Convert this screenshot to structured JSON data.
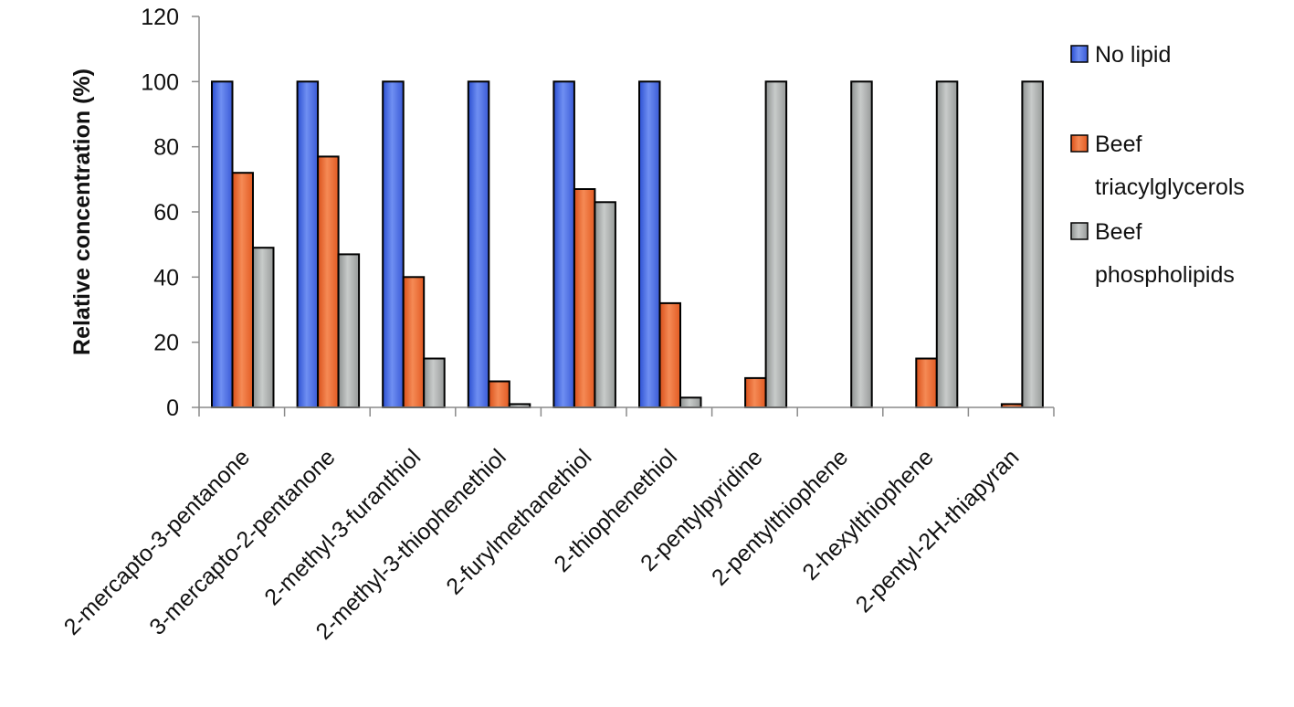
{
  "chart_data": {
    "type": "bar",
    "title": "",
    "xlabel": "",
    "ylabel": "Relative concentration (%)",
    "ylim": [
      0,
      120
    ],
    "yticks": [
      0,
      20,
      40,
      60,
      80,
      100,
      120
    ],
    "grid": false,
    "legend_position": "right",
    "categories": [
      "2-mercapto-3-pentanone",
      "3-mercapto-2-pentanone",
      "2-methyl-3-furanthiol",
      "2-methyl-3-thiophenethiol",
      "2-furylmethanethiol",
      "2-thiophenethiol",
      "2-pentylpyridine",
      "2-pentylthiophene",
      "2-hexylthiophene",
      "2-pentyl-2H-thiapyran"
    ],
    "series": [
      {
        "name": "No lipid",
        "legend_lines": [
          "No lipid"
        ],
        "color": "#4a6fe0",
        "values": [
          100,
          100,
          100,
          100,
          100,
          100,
          0,
          0,
          0,
          0
        ]
      },
      {
        "name": "Beef triacylglycerols",
        "legend_lines": [
          "Beef",
          "triacylglycerols"
        ],
        "color": "#ef6a2e",
        "values": [
          72,
          77,
          40,
          8,
          67,
          32,
          9,
          0,
          15,
          1
        ]
      },
      {
        "name": "Beef phospholipids",
        "legend_lines": [
          "Beef",
          "phospholipids"
        ],
        "color": "#a9acab",
        "values": [
          49,
          47,
          15,
          1,
          63,
          3,
          100,
          100,
          100,
          100
        ]
      }
    ]
  }
}
